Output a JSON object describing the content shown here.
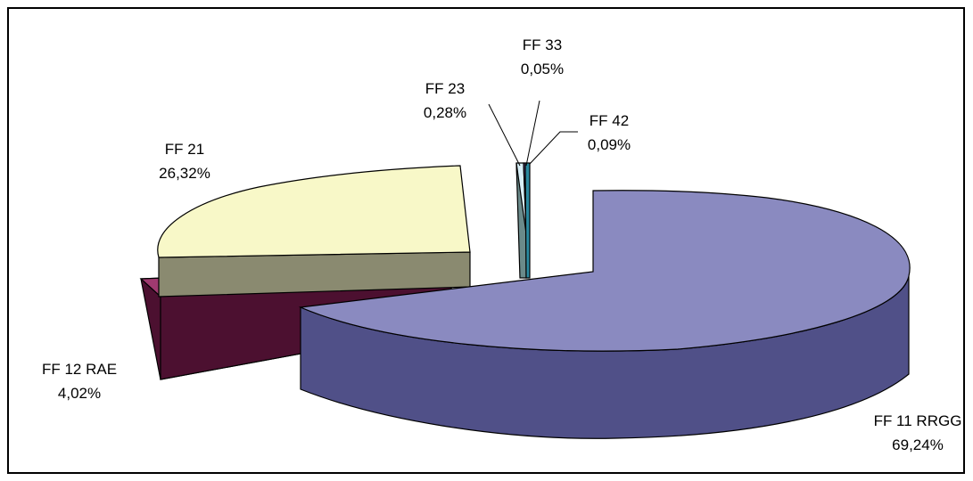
{
  "chart_data": {
    "type": "pie",
    "three_d": true,
    "exploded": true,
    "legend": "none",
    "slices": [
      {
        "label": "FF 11 RRGG",
        "value": 69.24,
        "value_text": "69,24%",
        "top_color": "#8a8ac0",
        "side_color": "#505088"
      },
      {
        "label": "FF 12 RAE",
        "value": 4.02,
        "value_text": "4,02%",
        "top_color": "#a03a70",
        "side_color": "#4c1030"
      },
      {
        "label": "FF 21",
        "value": 26.32,
        "value_text": "26,32%",
        "top_color": "#f8f8c8",
        "side_color": "#8a8a70"
      },
      {
        "label": "FF 23",
        "value": 0.28,
        "value_text": "0,28%",
        "top_color": "#d8f0f8",
        "side_color": "#6a8a8a"
      },
      {
        "label": "FF 33",
        "value": 0.05,
        "value_text": "0,05%",
        "top_color": "#6a4a8a",
        "side_color": "#2a1a4a"
      },
      {
        "label": "FF 42",
        "value": 0.09,
        "value_text": "0,09%",
        "top_color": "#2a8aa0",
        "side_color": "#0a3a4a"
      }
    ]
  }
}
